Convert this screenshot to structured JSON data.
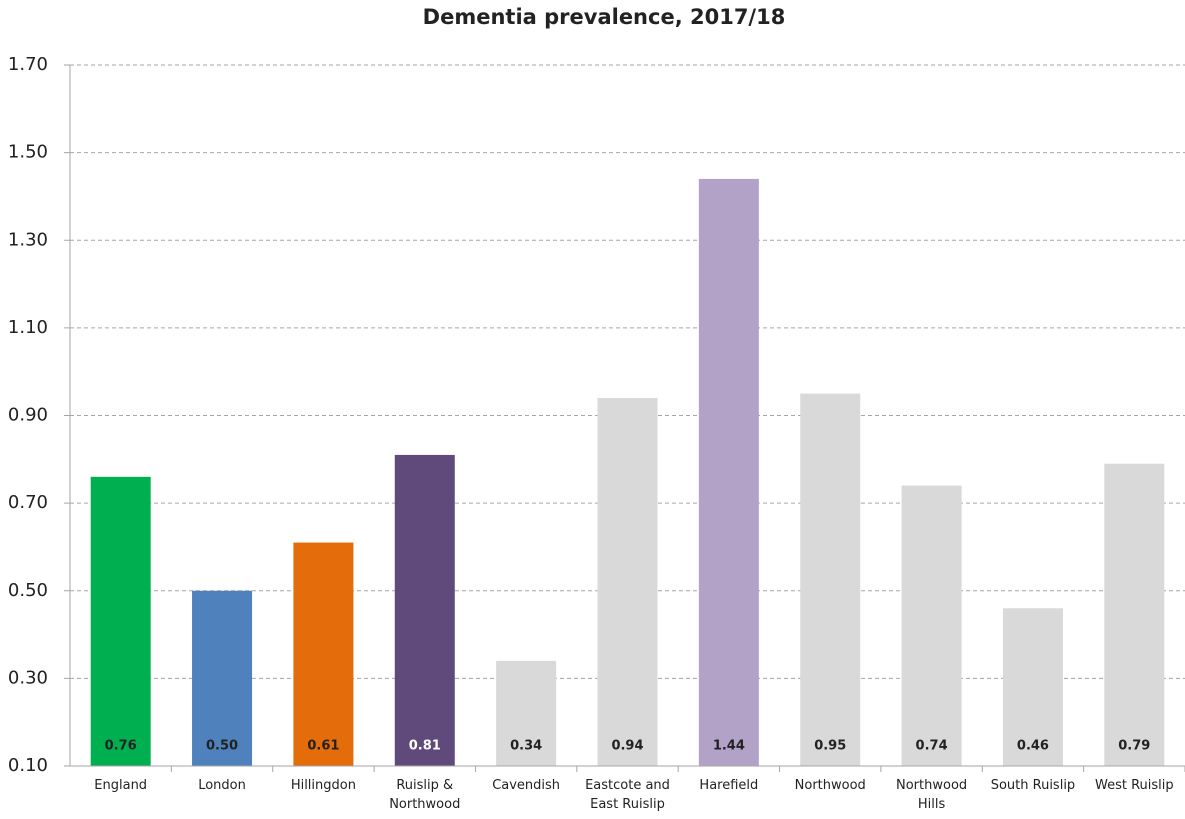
{
  "chart_data": {
    "type": "bar",
    "title": "Dementia prevalence, 2017/18",
    "categories": [
      "England",
      "London",
      "Hillingdon",
      "Ruislip & Northwood",
      "Cavendish",
      "Eastcote and East Ruislip",
      "Harefield",
      "Northwood",
      "Northwood Hills",
      "South Ruislip",
      "West Ruislip"
    ],
    "values": [
      0.76,
      0.5,
      0.61,
      0.81,
      0.34,
      0.94,
      1.44,
      0.95,
      0.74,
      0.46,
      0.79
    ],
    "value_labels": [
      "0.76",
      "0.50",
      "0.61",
      "0.81",
      "0.34",
      "0.94",
      "1.44",
      "0.95",
      "0.74",
      "0.46",
      "0.79"
    ],
    "colors": [
      "#00b050",
      "#4f81bd",
      "#e46c0a",
      "#604a7b",
      "#d9d9d9",
      "#d9d9d9",
      "#b3a2c7",
      "#d9d9d9",
      "#d9d9d9",
      "#d9d9d9",
      "#d9d9d9"
    ],
    "ylim": [
      0.1,
      1.7
    ],
    "yticks": [
      {
        "value": 0.1,
        "label": "0.10"
      },
      {
        "value": 0.3,
        "label": "0.30"
      },
      {
        "value": 0.5,
        "label": "0.50"
      },
      {
        "value": 0.7,
        "label": "0.70"
      },
      {
        "value": 0.9,
        "label": "0.90"
      },
      {
        "value": 1.1,
        "label": "1.10"
      },
      {
        "value": 1.3,
        "label": "1.30"
      },
      {
        "value": 1.5,
        "label": "1.50"
      },
      {
        "value": 1.7,
        "label": "1.70"
      }
    ],
    "grid": true
  }
}
